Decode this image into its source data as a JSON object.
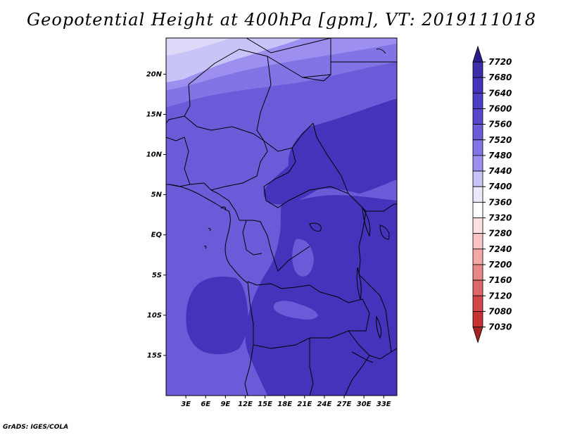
{
  "title": "Geopotential Height at 400hPa [gpm], VT: 2019111018",
  "credit": "GrADS: IGES/COLA",
  "map": {
    "lat_labels": [
      "20N",
      "15N",
      "10N",
      "5N",
      "EQ",
      "5S",
      "10S",
      "15S"
    ],
    "lat_values": [
      20,
      15,
      10,
      5,
      0,
      -5,
      -10,
      -15
    ],
    "lon_labels": [
      "3E",
      "6E",
      "9E",
      "12E",
      "15E",
      "18E",
      "21E",
      "24E",
      "27E",
      "30E",
      "33E"
    ],
    "lon_values": [
      3,
      6,
      9,
      12,
      15,
      18,
      21,
      24,
      27,
      30,
      33
    ],
    "lon_range": [
      0,
      35
    ],
    "lat_range": [
      -20,
      24.5
    ]
  },
  "colorbar": {
    "labels": [
      "7720",
      "7680",
      "7640",
      "7600",
      "7560",
      "7520",
      "7480",
      "7440",
      "7400",
      "7360",
      "7320",
      "7280",
      "7240",
      "7200",
      "7160",
      "7120",
      "7080",
      "7030"
    ],
    "colors": [
      "#2b1f99",
      "#3a2fa8",
      "#4434bb",
      "#4b3fc4",
      "#5647cc",
      "#6a5cd9",
      "#8374e6",
      "#9d8ff0",
      "#c9c4f7",
      "#ece9fb",
      "#ffffff",
      "#fde0e0",
      "#f8c4c4",
      "#f3a7a7",
      "#e88787",
      "#dd6868",
      "#d24848",
      "#c43232",
      "#b02525"
    ],
    "top_color": "#2a1e8f",
    "bottom_color": "#a82424"
  },
  "fields": {
    "colors": {
      "c7440": "#c9c4f7",
      "c7480": "#9d8ff0",
      "c7520": "#8374e6",
      "c7560": "#6a5cd9",
      "c7600": "#4434bb",
      "c7640": "#3a2fa8"
    }
  }
}
